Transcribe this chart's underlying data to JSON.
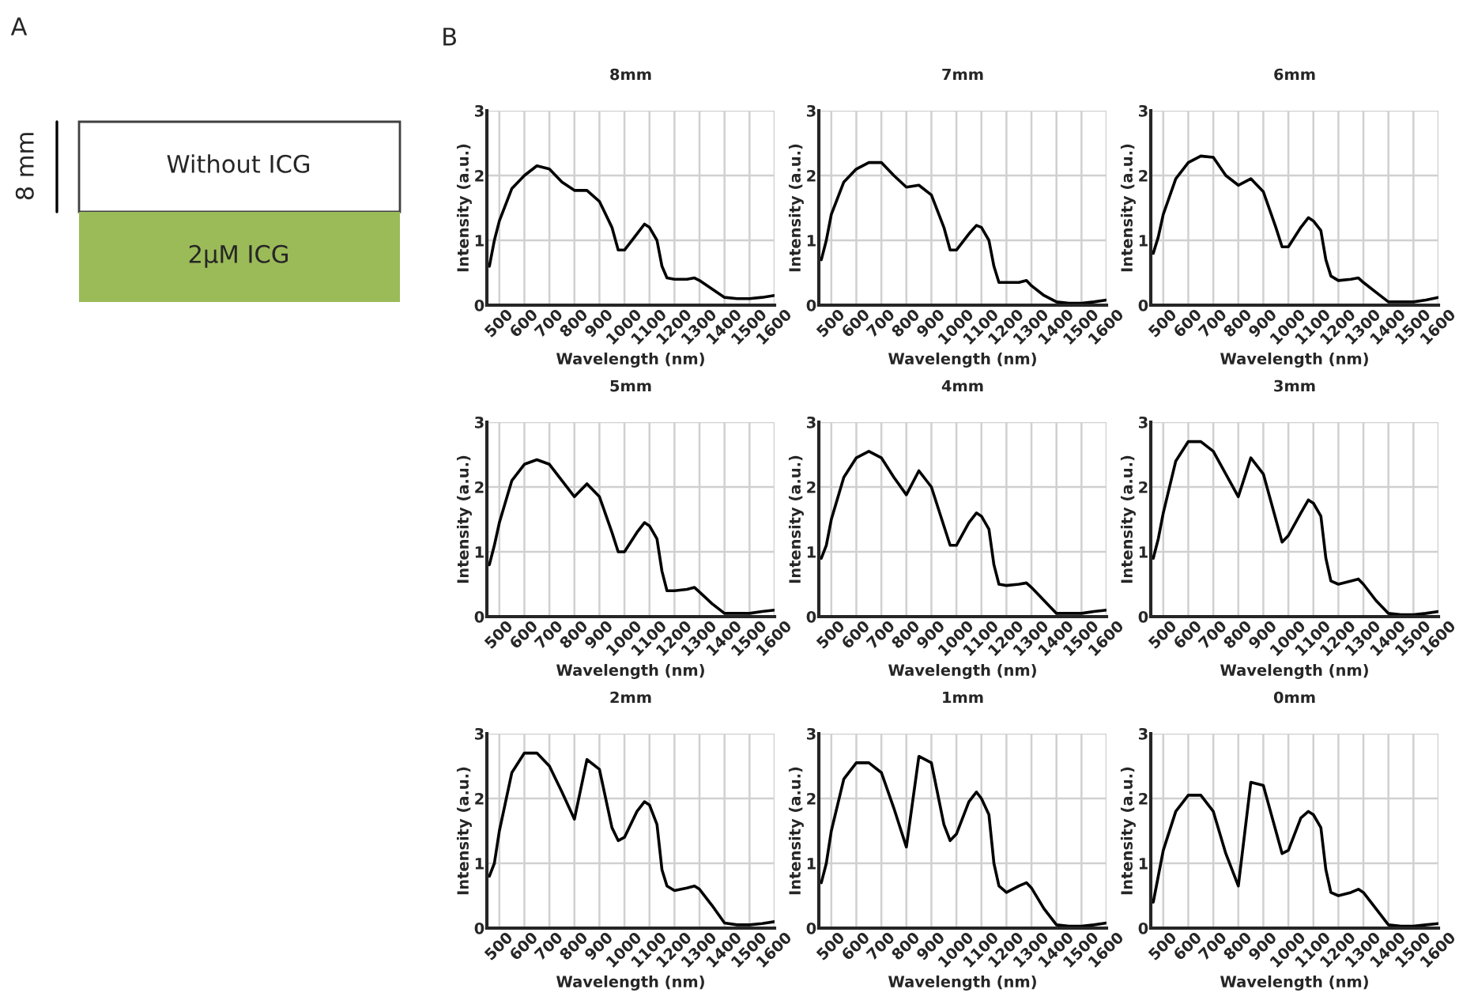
{
  "chart_data": [
    {
      "type": "other",
      "annotations": [
        "A",
        "8 mm",
        "Without ICG",
        "2μM ICG"
      ]
    },
    {
      "type": "line",
      "title": "8mm",
      "xlabel": "Wavelength (nm)",
      "ylabel": "Intensity (a.u.)",
      "annotations": [
        "B"
      ],
      "xlim": [
        450,
        1600
      ],
      "ylim": [
        0,
        3
      ],
      "xticks": [
        500,
        600,
        700,
        800,
        900,
        1000,
        1100,
        1200,
        1300,
        1400,
        1500,
        1600
      ],
      "yticks": [
        0,
        1,
        2,
        3
      ],
      "grid": true,
      "x": [
        460,
        480,
        500,
        550,
        600,
        650,
        700,
        750,
        800,
        850,
        900,
        950,
        975,
        1000,
        1050,
        1080,
        1100,
        1130,
        1150,
        1170,
        1200,
        1250,
        1280,
        1300,
        1350,
        1400,
        1450,
        1500,
        1550,
        1600
      ],
      "series": [
        {
          "color": "#000000",
          "values": [
            0.6,
            1.0,
            1.3,
            1.8,
            2.0,
            2.15,
            2.1,
            1.9,
            1.77,
            1.77,
            1.6,
            1.2,
            0.85,
            0.85,
            1.1,
            1.25,
            1.2,
            1.0,
            0.6,
            0.42,
            0.4,
            0.4,
            0.42,
            0.38,
            0.25,
            0.12,
            0.1,
            0.1,
            0.12,
            0.15
          ]
        }
      ]
    },
    {
      "type": "line",
      "title": "7mm",
      "xlabel": "Wavelength (nm)",
      "ylabel": "Intensity (a.u.)",
      "xlim": [
        450,
        1600
      ],
      "ylim": [
        0,
        3
      ],
      "xticks": [
        500,
        600,
        700,
        800,
        900,
        1000,
        1100,
        1200,
        1300,
        1400,
        1500,
        1600
      ],
      "yticks": [
        0,
        1,
        2,
        3
      ],
      "grid": true,
      "x": [
        460,
        480,
        500,
        550,
        600,
        650,
        700,
        750,
        800,
        850,
        900,
        950,
        975,
        1000,
        1050,
        1080,
        1100,
        1130,
        1150,
        1170,
        1200,
        1250,
        1280,
        1300,
        1350,
        1400,
        1450,
        1500,
        1550,
        1600
      ],
      "series": [
        {
          "color": "#000000",
          "values": [
            0.7,
            1.0,
            1.4,
            1.9,
            2.1,
            2.2,
            2.2,
            2.0,
            1.82,
            1.85,
            1.7,
            1.2,
            0.85,
            0.85,
            1.1,
            1.23,
            1.2,
            1.0,
            0.6,
            0.35,
            0.35,
            0.35,
            0.38,
            0.3,
            0.15,
            0.05,
            0.03,
            0.03,
            0.05,
            0.08
          ]
        }
      ]
    },
    {
      "type": "line",
      "title": "6mm",
      "xlabel": "Wavelength (nm)",
      "ylabel": "Intensity (a.u.)",
      "xlim": [
        450,
        1600
      ],
      "ylim": [
        0,
        3
      ],
      "xticks": [
        500,
        600,
        700,
        800,
        900,
        1000,
        1100,
        1200,
        1300,
        1400,
        1500,
        1600
      ],
      "yticks": [
        0,
        1,
        2,
        3
      ],
      "grid": true,
      "x": [
        460,
        480,
        500,
        550,
        600,
        650,
        700,
        750,
        800,
        850,
        900,
        950,
        975,
        1000,
        1050,
        1080,
        1100,
        1130,
        1150,
        1170,
        1200,
        1250,
        1280,
        1300,
        1350,
        1400,
        1450,
        1500,
        1550,
        1600
      ],
      "series": [
        {
          "color": "#000000",
          "values": [
            0.8,
            1.05,
            1.4,
            1.95,
            2.2,
            2.3,
            2.28,
            2.0,
            1.85,
            1.95,
            1.75,
            1.2,
            0.9,
            0.9,
            1.2,
            1.35,
            1.3,
            1.15,
            0.7,
            0.45,
            0.38,
            0.4,
            0.42,
            0.35,
            0.2,
            0.05,
            0.05,
            0.05,
            0.08,
            0.12
          ]
        }
      ]
    },
    {
      "type": "line",
      "title": "5mm",
      "xlabel": "Wavelength (nm)",
      "ylabel": "Intensity (a.u.)",
      "xlim": [
        450,
        1600
      ],
      "ylim": [
        0,
        3
      ],
      "xticks": [
        500,
        600,
        700,
        800,
        900,
        1000,
        1100,
        1200,
        1300,
        1400,
        1500,
        1600
      ],
      "yticks": [
        0,
        1,
        2,
        3
      ],
      "grid": true,
      "x": [
        460,
        480,
        500,
        550,
        600,
        650,
        700,
        750,
        800,
        850,
        900,
        950,
        975,
        1000,
        1050,
        1080,
        1100,
        1130,
        1150,
        1170,
        1200,
        1250,
        1280,
        1300,
        1350,
        1400,
        1450,
        1500,
        1550,
        1600
      ],
      "series": [
        {
          "color": "#000000",
          "values": [
            0.8,
            1.1,
            1.45,
            2.1,
            2.35,
            2.42,
            2.35,
            2.1,
            1.85,
            2.05,
            1.85,
            1.3,
            1.0,
            1.0,
            1.3,
            1.45,
            1.4,
            1.2,
            0.7,
            0.4,
            0.4,
            0.42,
            0.45,
            0.38,
            0.2,
            0.05,
            0.05,
            0.05,
            0.08,
            0.1
          ]
        }
      ]
    },
    {
      "type": "line",
      "title": "4mm",
      "xlabel": "Wavelength (nm)",
      "ylabel": "Intensity (a.u.)",
      "xlim": [
        450,
        1600
      ],
      "ylim": [
        0,
        3
      ],
      "xticks": [
        500,
        600,
        700,
        800,
        900,
        1000,
        1100,
        1200,
        1300,
        1400,
        1500,
        1600
      ],
      "yticks": [
        0,
        1,
        2,
        3
      ],
      "grid": true,
      "x": [
        460,
        480,
        500,
        550,
        600,
        650,
        700,
        750,
        800,
        850,
        900,
        950,
        975,
        1000,
        1050,
        1080,
        1100,
        1130,
        1150,
        1170,
        1200,
        1250,
        1280,
        1300,
        1350,
        1400,
        1450,
        1500,
        1550,
        1600
      ],
      "series": [
        {
          "color": "#000000",
          "values": [
            0.9,
            1.1,
            1.5,
            2.15,
            2.45,
            2.55,
            2.45,
            2.15,
            1.88,
            2.25,
            2.0,
            1.4,
            1.1,
            1.1,
            1.45,
            1.6,
            1.55,
            1.35,
            0.8,
            0.5,
            0.48,
            0.5,
            0.52,
            0.45,
            0.25,
            0.05,
            0.05,
            0.05,
            0.08,
            0.1
          ]
        }
      ]
    },
    {
      "type": "line",
      "title": "3mm",
      "xlabel": "Wavelength (nm)",
      "ylabel": "Intensity (a.u.)",
      "xlim": [
        450,
        1600
      ],
      "ylim": [
        0,
        3
      ],
      "xticks": [
        500,
        600,
        700,
        800,
        900,
        1000,
        1100,
        1200,
        1300,
        1400,
        1500,
        1600
      ],
      "yticks": [
        0,
        1,
        2,
        3
      ],
      "grid": true,
      "x": [
        460,
        480,
        500,
        550,
        600,
        650,
        700,
        750,
        800,
        850,
        900,
        950,
        975,
        1000,
        1050,
        1080,
        1100,
        1130,
        1150,
        1170,
        1200,
        1250,
        1280,
        1300,
        1350,
        1400,
        1450,
        1500,
        1550,
        1600
      ],
      "series": [
        {
          "color": "#000000",
          "values": [
            0.9,
            1.2,
            1.6,
            2.4,
            2.7,
            2.7,
            2.55,
            2.2,
            1.85,
            2.45,
            2.2,
            1.5,
            1.15,
            1.25,
            1.6,
            1.8,
            1.75,
            1.55,
            0.9,
            0.55,
            0.5,
            0.55,
            0.58,
            0.5,
            0.25,
            0.05,
            0.03,
            0.03,
            0.05,
            0.08
          ]
        }
      ]
    },
    {
      "type": "line",
      "title": "2mm",
      "xlabel": "Wavelength (nm)",
      "ylabel": "Intensity (a.u.)",
      "xlim": [
        450,
        1600
      ],
      "ylim": [
        0,
        3
      ],
      "xticks": [
        500,
        600,
        700,
        800,
        900,
        1000,
        1100,
        1200,
        1300,
        1400,
        1500,
        1600
      ],
      "yticks": [
        0,
        1,
        2,
        3
      ],
      "grid": true,
      "x": [
        460,
        480,
        500,
        550,
        600,
        650,
        700,
        750,
        800,
        850,
        900,
        950,
        975,
        1000,
        1050,
        1080,
        1100,
        1130,
        1150,
        1170,
        1200,
        1250,
        1280,
        1300,
        1350,
        1400,
        1450,
        1500,
        1550,
        1600
      ],
      "series": [
        {
          "color": "#000000",
          "values": [
            0.8,
            1.0,
            1.5,
            2.4,
            2.7,
            2.7,
            2.5,
            2.1,
            1.68,
            2.6,
            2.45,
            1.55,
            1.35,
            1.4,
            1.8,
            1.95,
            1.9,
            1.6,
            0.9,
            0.65,
            0.58,
            0.62,
            0.65,
            0.6,
            0.35,
            0.08,
            0.05,
            0.05,
            0.07,
            0.1
          ]
        }
      ]
    },
    {
      "type": "line",
      "title": "1mm",
      "xlabel": "Wavelength (nm)",
      "ylabel": "Intensity (a.u.)",
      "xlim": [
        450,
        1600
      ],
      "ylim": [
        0,
        3
      ],
      "xticks": [
        500,
        600,
        700,
        800,
        900,
        1000,
        1100,
        1200,
        1300,
        1400,
        1500,
        1600
      ],
      "yticks": [
        0,
        1,
        2,
        3
      ],
      "grid": true,
      "x": [
        460,
        480,
        500,
        550,
        600,
        650,
        700,
        750,
        800,
        850,
        900,
        950,
        975,
        1000,
        1050,
        1080,
        1100,
        1130,
        1150,
        1170,
        1200,
        1250,
        1280,
        1300,
        1350,
        1400,
        1450,
        1500,
        1550,
        1600
      ],
      "series": [
        {
          "color": "#000000",
          "values": [
            0.7,
            1.0,
            1.5,
            2.3,
            2.55,
            2.55,
            2.4,
            1.85,
            1.25,
            2.65,
            2.55,
            1.6,
            1.35,
            1.45,
            1.95,
            2.1,
            2.0,
            1.75,
            1.0,
            0.65,
            0.55,
            0.65,
            0.7,
            0.62,
            0.3,
            0.05,
            0.03,
            0.03,
            0.05,
            0.08
          ]
        }
      ]
    },
    {
      "type": "line",
      "title": "0mm",
      "xlabel": "Wavelength (nm)",
      "ylabel": "Intensity (a.u.)",
      "xlim": [
        450,
        1600
      ],
      "ylim": [
        0,
        3
      ],
      "xticks": [
        500,
        600,
        700,
        800,
        900,
        1000,
        1100,
        1200,
        1300,
        1400,
        1500,
        1600
      ],
      "yticks": [
        0,
        1,
        2,
        3
      ],
      "grid": true,
      "x": [
        460,
        480,
        500,
        550,
        600,
        650,
        700,
        750,
        800,
        850,
        900,
        950,
        975,
        1000,
        1050,
        1080,
        1100,
        1130,
        1150,
        1170,
        1200,
        1250,
        1280,
        1300,
        1350,
        1400,
        1450,
        1500,
        1550,
        1600
      ],
      "series": [
        {
          "color": "#000000",
          "values": [
            0.4,
            0.8,
            1.2,
            1.8,
            2.05,
            2.05,
            1.8,
            1.15,
            0.65,
            2.25,
            2.2,
            1.5,
            1.15,
            1.2,
            1.7,
            1.8,
            1.75,
            1.55,
            0.9,
            0.55,
            0.5,
            0.55,
            0.6,
            0.55,
            0.3,
            0.05,
            0.03,
            0.03,
            0.05,
            0.07
          ]
        }
      ]
    }
  ]
}
